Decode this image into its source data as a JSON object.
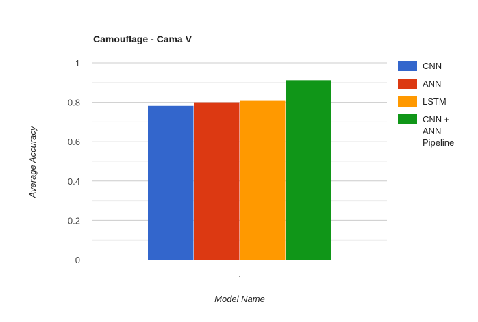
{
  "chart_data": {
    "type": "bar",
    "title": "Camouflage - Cama V",
    "xlabel": "Model Name",
    "ylabel": "Average Accuracy",
    "categories": [
      "."
    ],
    "series": [
      {
        "name": "CNN",
        "values": [
          0.782
        ],
        "color": "#3366cc"
      },
      {
        "name": "ANN",
        "values": [
          0.8
        ],
        "color": "#dc3912"
      },
      {
        "name": "LSTM",
        "values": [
          0.807
        ],
        "color": "#ff9900"
      },
      {
        "name": "CNN + ANN Pipeline",
        "values": [
          0.912
        ],
        "color": "#109618"
      }
    ],
    "ylim": [
      0,
      1
    ],
    "yticks": [
      "0",
      "0.2",
      "0.4",
      "0.6",
      "0.8",
      "1"
    ],
    "ytick_values": [
      0,
      0.2,
      0.4,
      0.6,
      0.8,
      1
    ],
    "grid": true,
    "legend_position": "right",
    "legend_lines": [
      [
        "CNN"
      ],
      [
        "ANN"
      ],
      [
        "LSTM"
      ],
      [
        "CNN +",
        "ANN",
        "Pipeline"
      ]
    ]
  }
}
